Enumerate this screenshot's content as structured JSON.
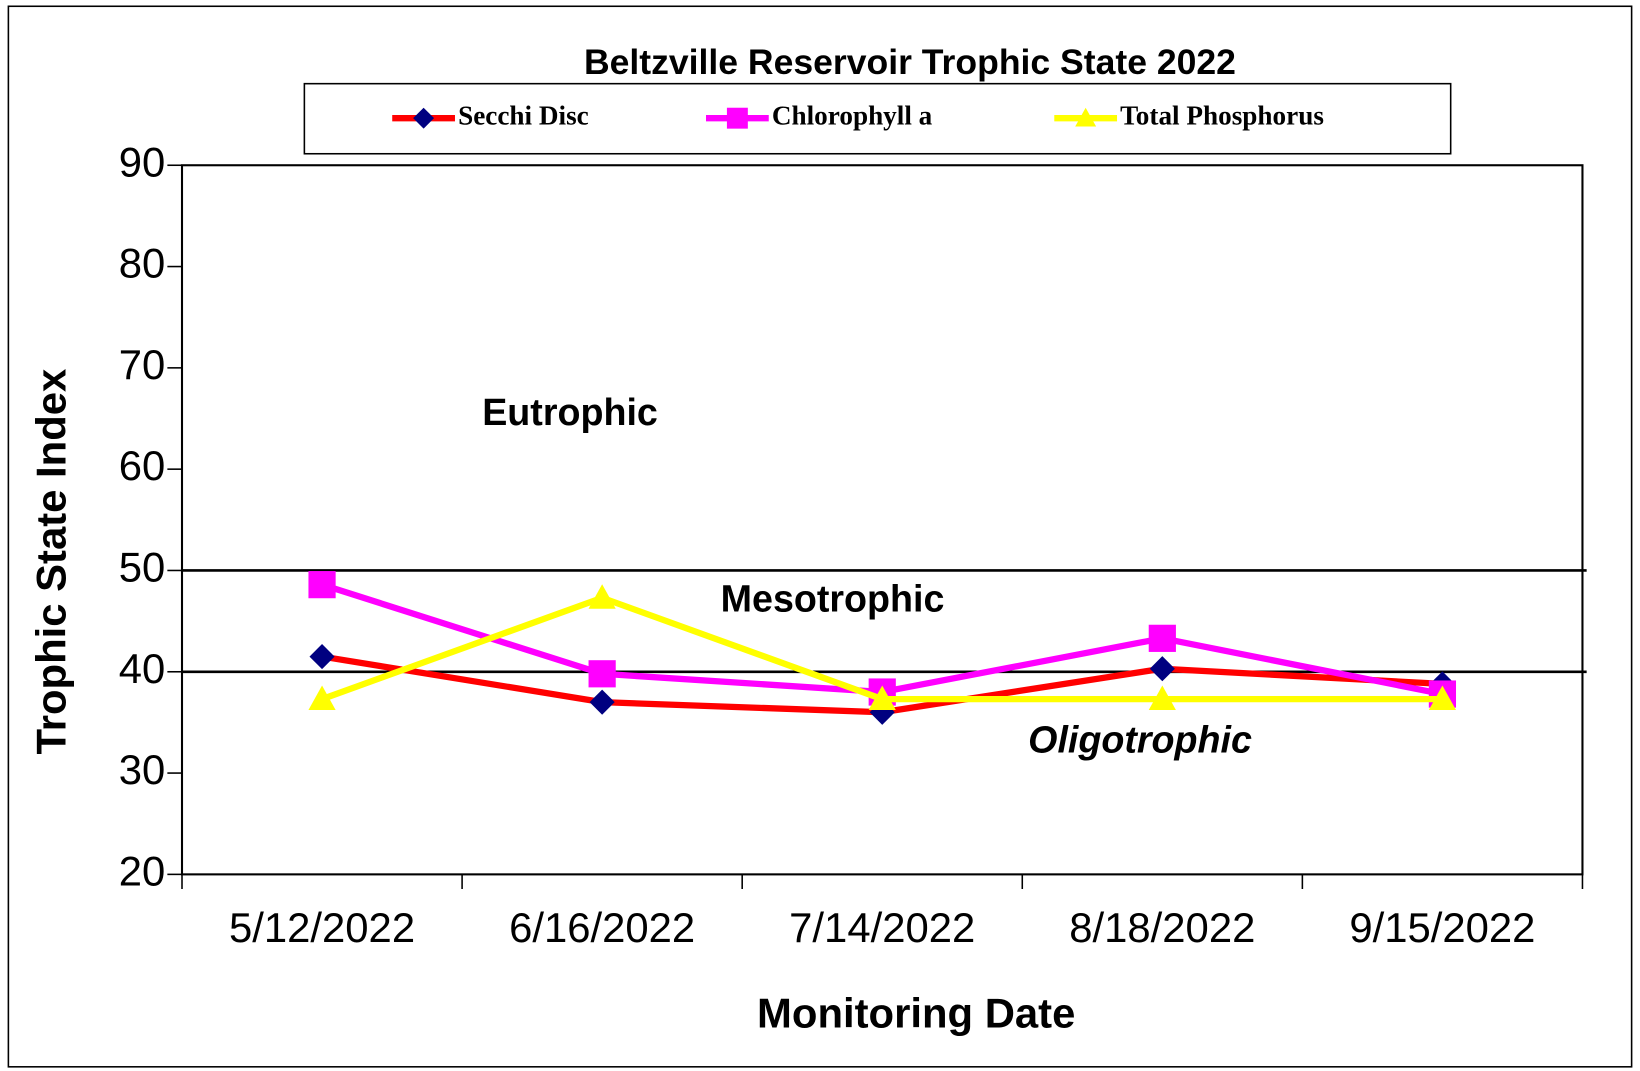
{
  "chart_data": {
    "type": "line",
    "title": "Beltzville Reservoir Trophic State 2022",
    "x_label": "Monitoring Date",
    "y_label": "Trophic State Index",
    "categories": [
      "5/12/2022",
      "6/16/2022",
      "7/14/2022",
      "8/18/2022",
      "9/15/2022"
    ],
    "series": [
      {
        "name": "Secchi Disc",
        "color": "#ff0000",
        "marker": "diamond",
        "marker_color": "#000080",
        "values": [
          41.5,
          37,
          36,
          40.3,
          38.8
        ]
      },
      {
        "name": "Chlorophyll a",
        "color": "#ff00ff",
        "marker": "square",
        "marker_color": "#ff00ff",
        "values": [
          48.6,
          39.8,
          38,
          43.3,
          37.8
        ]
      },
      {
        "name": "Total Phosphorus",
        "color": "#ffff00",
        "marker": "triangle",
        "marker_color": "#ffff00",
        "values": [
          37.3,
          47.3,
          37.3,
          37.3,
          37.3
        ]
      }
    ],
    "reference_lines": [
      50,
      40
    ],
    "annotations": [
      {
        "text": "Eutrophic",
        "style": "bold"
      },
      {
        "text": "Mesotrophic",
        "style": "bold"
      },
      {
        "text": "Oligotrophic",
        "style": "bold italic"
      }
    ],
    "ylim": [
      20,
      90
    ],
    "yticks": [
      20,
      30,
      40,
      50,
      60,
      70,
      80,
      90
    ],
    "grid": false,
    "legend": "top"
  }
}
